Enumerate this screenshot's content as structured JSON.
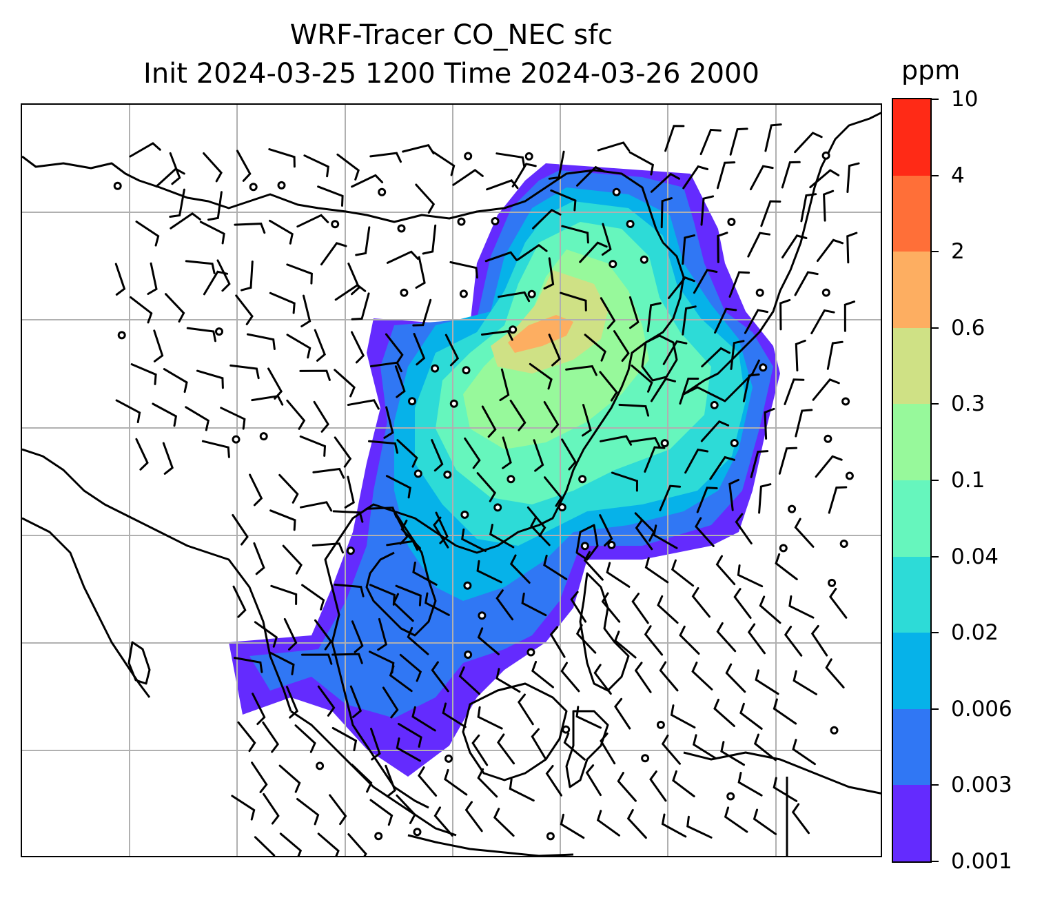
{
  "title": {
    "line1": "WRF-Tracer CO_NEC sfc",
    "line2": "Init 2024-03-25 1200 Time 2024-03-26 2000"
  },
  "colorbar": {
    "units": "ppm",
    "ticks": [
      "10",
      "4",
      "2",
      "0.6",
      "0.3",
      "0.1",
      "0.04",
      "0.02",
      "0.006",
      "0.003",
      "0.001"
    ],
    "colors": [
      "#ff2a16",
      "#ff6f38",
      "#fdae61",
      "#cfe185",
      "#97f99b",
      "#66f6bd",
      "#2ddbd7",
      "#06b2e9",
      "#3077f4",
      "#642bfe"
    ]
  },
  "map": {
    "gridlines": "on",
    "coastline_color": "#000000",
    "grid_color": "#b0b0b0",
    "wind_barbs": "black",
    "calm_markers": "open circles"
  }
}
